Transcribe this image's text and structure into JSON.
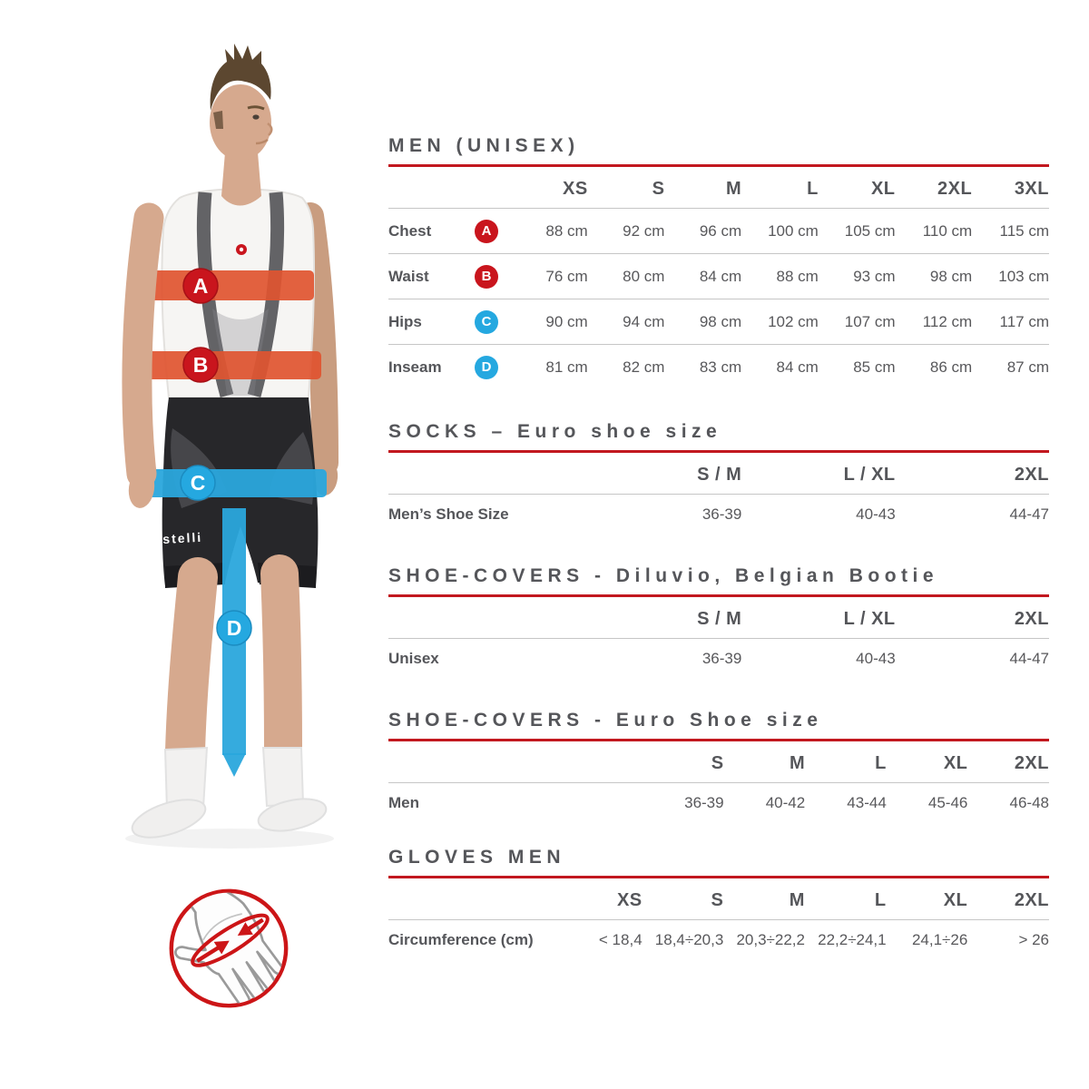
{
  "colors": {
    "accent_red": "#c2181f",
    "badge_red": "#c9151d",
    "badge_blue": "#25a8e0",
    "band_red": "#e05430",
    "band_blue": "#2aa6dc",
    "heading_gray": "#55565a",
    "text_gray": "#58585b",
    "divider_gray": "#c6c6c6"
  },
  "figure": {
    "shorts_text": "castelli",
    "markers": [
      {
        "label": "A",
        "measure": "Chest",
        "color": "red"
      },
      {
        "label": "B",
        "measure": "Waist",
        "color": "red"
      },
      {
        "label": "C",
        "measure": "Hips",
        "color": "blue"
      },
      {
        "label": "D",
        "measure": "Inseam",
        "color": "blue"
      }
    ]
  },
  "icons": {
    "glove_measure": "hand-circumference-icon"
  },
  "tables": [
    {
      "id": "men-unisex",
      "title": "MEN (UNISEX)",
      "columns": [
        "XS",
        "S",
        "M",
        "L",
        "XL",
        "2XL",
        "3XL"
      ],
      "rows": [
        {
          "label": "Chest",
          "badge": "A",
          "badge_color": "red",
          "values": [
            "88 cm",
            "92 cm",
            "96 cm",
            "100 cm",
            "105 cm",
            "110 cm",
            "115 cm"
          ]
        },
        {
          "label": "Waist",
          "badge": "B",
          "badge_color": "red",
          "values": [
            "76 cm",
            "80 cm",
            "84 cm",
            "88 cm",
            "93 cm",
            "98 cm",
            "103 cm"
          ]
        },
        {
          "label": "Hips",
          "badge": "C",
          "badge_color": "blue",
          "values": [
            "90 cm",
            "94 cm",
            "98 cm",
            "102 cm",
            "107 cm",
            "112 cm",
            "117 cm"
          ]
        },
        {
          "label": "Inseam",
          "badge": "D",
          "badge_color": "blue",
          "values": [
            "81 cm",
            "82 cm",
            "83 cm",
            "84 cm",
            "85 cm",
            "86 cm",
            "87 cm"
          ]
        }
      ]
    },
    {
      "id": "socks",
      "title": "SOCKS – Euro shoe size",
      "columns": [
        "S / M",
        "L / XL",
        "2XL"
      ],
      "rows": [
        {
          "label": "Men’s Shoe Size",
          "values": [
            "36-39",
            "40-43",
            "44-47"
          ]
        }
      ]
    },
    {
      "id": "shoe-covers-diluvio",
      "title": "SHOE-COVERS - Diluvio, Belgian Bootie",
      "columns": [
        "S / M",
        "L / XL",
        "2XL"
      ],
      "rows": [
        {
          "label": "Unisex",
          "values": [
            "36-39",
            "40-43",
            "44-47"
          ]
        }
      ]
    },
    {
      "id": "shoe-covers-euro",
      "title": "SHOE-COVERS - Euro Shoe size",
      "columns": [
        "S",
        "M",
        "L",
        "XL",
        "2XL"
      ],
      "rows": [
        {
          "label": "Men",
          "values": [
            "36-39",
            "40-42",
            "43-44",
            "45-46",
            "46-48"
          ]
        }
      ]
    },
    {
      "id": "gloves-men",
      "title": "GLOVES MEN",
      "columns": [
        "XS",
        "S",
        "M",
        "L",
        "XL",
        "2XL"
      ],
      "rows": [
        {
          "label": "Circumference (cm)",
          "values": [
            "< 18,4",
            "18,4÷20,3",
            "20,3÷22,2",
            "22,2÷24,1",
            "24,1÷26",
            "> 26"
          ]
        }
      ]
    }
  ]
}
